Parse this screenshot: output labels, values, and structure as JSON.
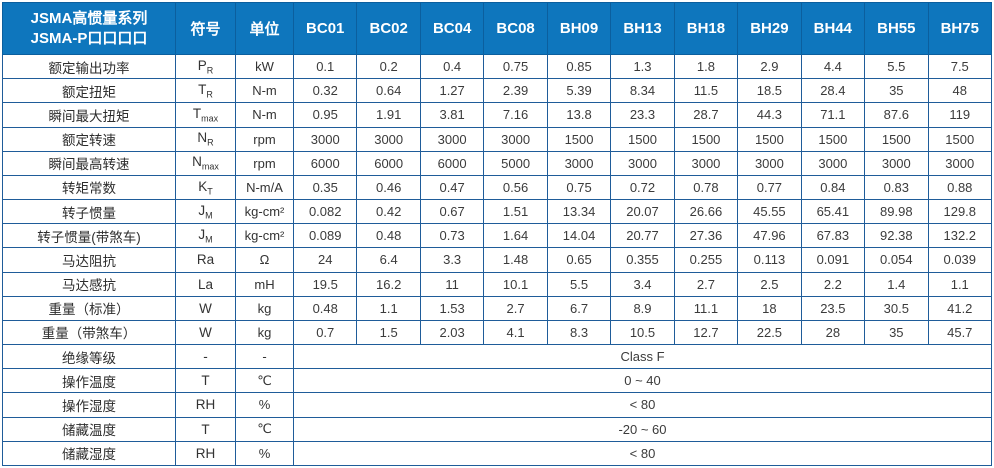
{
  "table": {
    "title_line1": "JSMA高惯量系列",
    "title_line2": "JSMA-P口口口口",
    "col_symbol": "符号",
    "col_unit": "单位",
    "models": [
      "BC01",
      "BC02",
      "BC04",
      "BC08",
      "BH09",
      "BH13",
      "BH18",
      "BH29",
      "BH44",
      "BH55",
      "BH75"
    ],
    "rows": [
      {
        "label": "额定输出功率",
        "sym": "P",
        "sub": "R",
        "unit": "kW",
        "values": [
          "0.1",
          "0.2",
          "0.4",
          "0.75",
          "0.85",
          "1.3",
          "1.8",
          "2.9",
          "4.4",
          "5.5",
          "7.5"
        ]
      },
      {
        "label": "额定扭矩",
        "sym": "T",
        "sub": "R",
        "unit": "N-m",
        "values": [
          "0.32",
          "0.64",
          "1.27",
          "2.39",
          "5.39",
          "8.34",
          "11.5",
          "18.5",
          "28.4",
          "35",
          "48"
        ]
      },
      {
        "label": "瞬间最大扭矩",
        "sym": "T",
        "sub": "max",
        "unit": "N-m",
        "values": [
          "0.95",
          "1.91",
          "3.81",
          "7.16",
          "13.8",
          "23.3",
          "28.7",
          "44.3",
          "71.1",
          "87.6",
          "119"
        ]
      },
      {
        "label": "额定转速",
        "sym": "N",
        "sub": "R",
        "unit": "rpm",
        "values": [
          "3000",
          "3000",
          "3000",
          "3000",
          "1500",
          "1500",
          "1500",
          "1500",
          "1500",
          "1500",
          "1500"
        ]
      },
      {
        "label": "瞬间最高转速",
        "sym": "N",
        "sub": "max",
        "unit": "rpm",
        "values": [
          "6000",
          "6000",
          "6000",
          "5000",
          "3000",
          "3000",
          "3000",
          "3000",
          "3000",
          "3000",
          "3000"
        ]
      },
      {
        "label": "转矩常数",
        "sym": "K",
        "sub": "T",
        "unit": "N-m/A",
        "values": [
          "0.35",
          "0.46",
          "0.47",
          "0.56",
          "0.75",
          "0.72",
          "0.78",
          "0.77",
          "0.84",
          "0.83",
          "0.88"
        ]
      },
      {
        "label": "转子惯量",
        "sym": "J",
        "sub": "M",
        "unit": "kg-cm²",
        "values": [
          "0.082",
          "0.42",
          "0.67",
          "1.51",
          "13.34",
          "20.07",
          "26.66",
          "45.55",
          "65.41",
          "89.98",
          "129.8"
        ]
      },
      {
        "label": "转子惯量(带煞车)",
        "sym": "J",
        "sub": "M",
        "unit": "kg-cm²",
        "values": [
          "0.089",
          "0.48",
          "0.73",
          "1.64",
          "14.04",
          "20.77",
          "27.36",
          "47.96",
          "67.83",
          "92.38",
          "132.2"
        ]
      },
      {
        "label": "马达阻抗",
        "sym": "Ra",
        "sub": "",
        "unit": "Ω",
        "values": [
          "24",
          "6.4",
          "3.3",
          "1.48",
          "0.65",
          "0.355",
          "0.255",
          "0.113",
          "0.091",
          "0.054",
          "0.039"
        ]
      },
      {
        "label": "马达感抗",
        "sym": "La",
        "sub": "",
        "unit": "mH",
        "values": [
          "19.5",
          "16.2",
          "11",
          "10.1",
          "5.5",
          "3.4",
          "2.7",
          "2.5",
          "2.2",
          "1.4",
          "1.1"
        ]
      },
      {
        "label": "重量（标准）",
        "sym": "W",
        "sub": "",
        "unit": "kg",
        "values": [
          "0.48",
          "1.1",
          "1.53",
          "2.7",
          "6.7",
          "8.9",
          "11.1",
          "18",
          "23.5",
          "30.5",
          "41.2"
        ]
      },
      {
        "label": "重量（带煞车）",
        "sym": "W",
        "sub": "",
        "unit": "kg",
        "values": [
          "0.7",
          "1.5",
          "2.03",
          "4.1",
          "8.3",
          "10.5",
          "12.7",
          "22.5",
          "28",
          "35",
          "45.7"
        ]
      },
      {
        "label": "绝缘等级",
        "sym": "-",
        "sub": "",
        "unit": "-",
        "span": "Class F"
      },
      {
        "label": "操作温度",
        "sym": "T",
        "sub": "",
        "unit": "℃",
        "span": "0 ~ 40"
      },
      {
        "label": "操作湿度",
        "sym": "RH",
        "sub": "",
        "unit": "%",
        "span": "< 80"
      },
      {
        "label": "储藏温度",
        "sym": "T",
        "sub": "",
        "unit": "℃",
        "span": "-20 ~ 60"
      },
      {
        "label": "储藏湿度",
        "sym": "RH",
        "sub": "",
        "unit": "%",
        "span": "< 80"
      }
    ],
    "colors": {
      "header_bg": "#0e76bd",
      "header_text": "#ffffff",
      "border": "#1f5c99",
      "body_text": "#3b3b3b"
    }
  }
}
